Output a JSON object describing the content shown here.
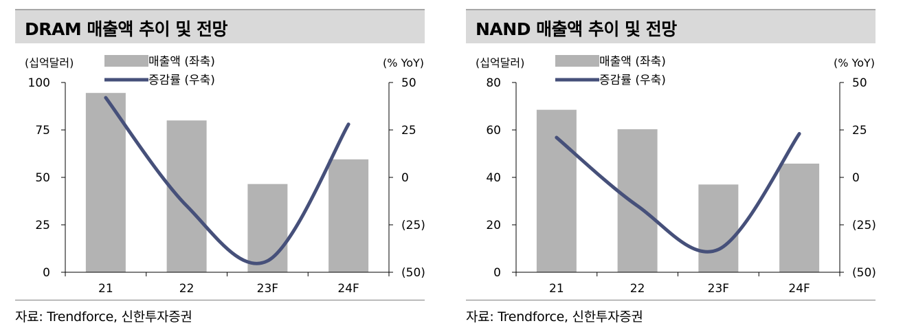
{
  "chart_data": [
    {
      "type": "bar",
      "title": "DRAM 매출액 추이 및 전망",
      "categories": [
        "21",
        "22",
        "23F",
        "24F"
      ],
      "series": [
        {
          "name": "매출액 (좌축)",
          "axis": "left",
          "kind": "bar",
          "values": [
            94.5,
            80,
            46.5,
            59.5
          ]
        },
        {
          "name": "증감률 (우축)",
          "axis": "right",
          "kind": "line",
          "values": [
            42,
            -15,
            -44,
            28
          ]
        }
      ],
      "left_axis": {
        "label": "(십억달러)",
        "ylim": [
          0,
          100
        ],
        "ticks": [
          "100",
          "75",
          "50",
          "25",
          "0"
        ]
      },
      "right_axis": {
        "label": "(% YoY)",
        "ylim": [
          -50,
          50
        ],
        "ticks": [
          "50",
          "25",
          "0",
          "(25)",
          "(50)"
        ]
      },
      "legend": {
        "bar": "매출액 (좌축)",
        "line": "증감률 (우축)"
      },
      "source": "자료: Trendforce, 신한투자증권",
      "colors": {
        "bar": "#b3b3b3",
        "line": "#46507a",
        "title_bg": "#d9d9d9"
      }
    },
    {
      "type": "bar",
      "title": "NAND 매출액 추이 및 전망",
      "categories": [
        "21",
        "22",
        "23F",
        "24F"
      ],
      "series": [
        {
          "name": "매출액 (좌축)",
          "axis": "left",
          "kind": "bar",
          "values": [
            68.5,
            60.3,
            37,
            45.8
          ]
        },
        {
          "name": "증감률 (우축)",
          "axis": "right",
          "kind": "line",
          "values": [
            21,
            -15,
            -38,
            23
          ]
        }
      ],
      "left_axis": {
        "label": "(십억달러)",
        "ylim": [
          0,
          80
        ],
        "ticks": [
          "80",
          "60",
          "40",
          "20",
          "0"
        ]
      },
      "right_axis": {
        "label": "(% YoY)",
        "ylim": [
          -50,
          50
        ],
        "ticks": [
          "50",
          "25",
          "0",
          "(25)",
          "(50)"
        ]
      },
      "legend": {
        "bar": "매출액 (좌축)",
        "line": "증감률 (우축)"
      },
      "source": "자료: Trendforce, 신한투자증권",
      "colors": {
        "bar": "#b3b3b3",
        "line": "#46507a",
        "title_bg": "#d9d9d9"
      }
    }
  ]
}
